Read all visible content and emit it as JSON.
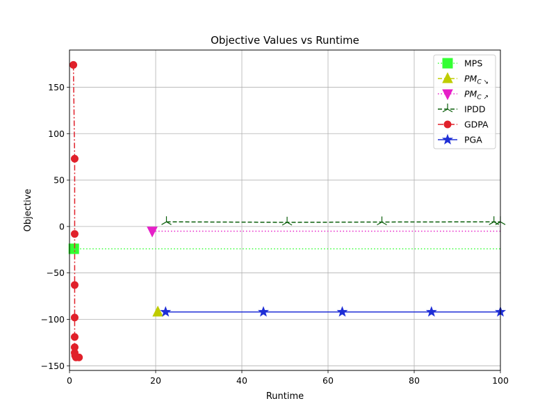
{
  "chart_data": {
    "type": "line",
    "title": "Objective Values vs Runtime",
    "xlabel": "Runtime",
    "ylabel": "Objective",
    "xlim": [
      0,
      100
    ],
    "ylim": [
      -155,
      190
    ],
    "xticks": [
      0,
      20,
      40,
      60,
      80,
      100
    ],
    "yticks": [
      -150,
      -100,
      -50,
      0,
      50,
      100,
      150
    ],
    "xtick_labels": [
      "0",
      "20",
      "40",
      "60",
      "80",
      "100"
    ],
    "ytick_labels": [
      "−150",
      "−100",
      "−50",
      "0",
      "50",
      "100",
      "150"
    ],
    "grid": true,
    "legend_position": "top-right",
    "series": [
      {
        "name": "MPS",
        "color": "#33ff33",
        "marker": "square",
        "line_style": "dotted",
        "x": [
          1
        ],
        "y": [
          -24
        ],
        "extend_to_xmax": true
      },
      {
        "name": "PM_C↘",
        "color": "#bfcc00",
        "marker": "triangle-up",
        "line_style": "dashed",
        "x": [
          20.5
        ],
        "y": [
          -92
        ],
        "extend_to_xmax": false
      },
      {
        "name": "PM_C↗",
        "color": "#e620c8",
        "marker": "triangle-down",
        "line_style": "dotted",
        "x": [
          19.2
        ],
        "y": [
          -5
        ],
        "extend_to_xmax": true
      },
      {
        "name": "IPDD",
        "color": "#0a5e0a",
        "marker": "tri-down",
        "line_style": "dashed",
        "x": [
          22.5,
          50.5,
          72.5,
          98.5,
          100
        ],
        "y": [
          5,
          4.5,
          4.8,
          5,
          5
        ]
      },
      {
        "name": "GDPA",
        "color": "#e0202a",
        "marker": "circle",
        "line_style": "dashdot",
        "x": [
          0.9,
          1.2,
          1.2,
          1.2,
          1.2,
          1.2,
          1.2,
          1.2,
          1.3,
          1.5,
          2.2
        ],
        "y": [
          174,
          73,
          -8,
          -63,
          -98,
          -119,
          -130,
          -136,
          -139,
          -141,
          -141
        ]
      },
      {
        "name": "PGA",
        "color": "#1f2fd6",
        "marker": "star",
        "line_style": "solid",
        "x": [
          22.3,
          45,
          63.3,
          84,
          100
        ],
        "y": [
          -92,
          -92,
          -92,
          -92,
          -92
        ]
      }
    ],
    "legend_labels": [
      {
        "main": "MPS",
        "sub": "",
        "italic": false
      },
      {
        "main": "PM",
        "sub": "C ↘",
        "italic": true
      },
      {
        "main": "PM",
        "sub": "C ↗",
        "italic": true
      },
      {
        "main": "IPDD",
        "sub": "",
        "italic": false
      },
      {
        "main": "GDPA",
        "sub": "",
        "italic": false
      },
      {
        "main": "PGA",
        "sub": "",
        "italic": false
      }
    ]
  }
}
